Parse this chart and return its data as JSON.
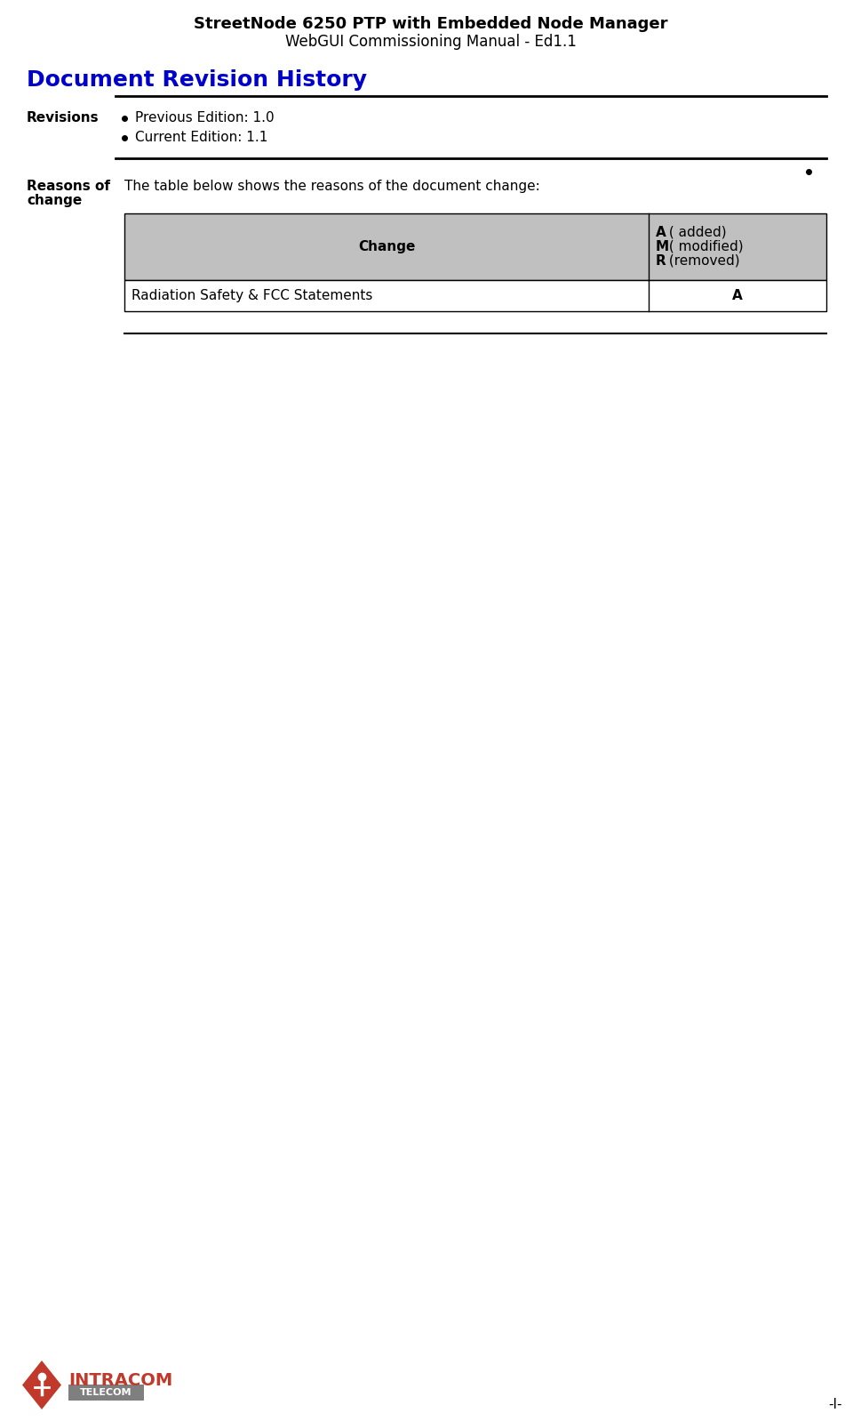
{
  "title_line1": "StreetNode 6250 PTP with Embedded Node Manager",
  "title_line2": "WebGUI Commissioning Manual - Ed1.1",
  "section_title": "Document Revision History",
  "revisions_label": "Revisions",
  "revision_bullets": [
    "Previous Edition: 1.0",
    "Current Edition: 1.1"
  ],
  "reasons_text": "The table below shows the reasons of the document change:",
  "table_header_col1": "Change",
  "table_header_col2_lines": [
    "A ( added)",
    "M ( modified)",
    "R (removed)"
  ],
  "table_row_col1": "Radiation Safety & FCC Statements",
  "table_row_col2": "A",
  "page_number": "-I-",
  "bg_color": "#ffffff",
  "title_color": "#000000",
  "section_title_color": "#0000cc",
  "label_color": "#000000",
  "table_header_bg": "#c0c0c0",
  "table_row_bg": "#ffffff",
  "table_border_color": "#000000",
  "line_color": "#000000",
  "intracom_red": "#c0392b",
  "intracom_gray": "#7f7f7f"
}
